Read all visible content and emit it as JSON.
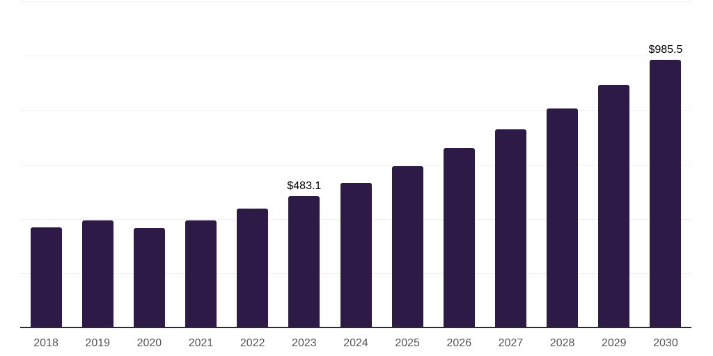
{
  "chart_data": {
    "type": "bar",
    "title": "",
    "xlabel": "",
    "ylabel": "",
    "categories": [
      "2018",
      "2019",
      "2020",
      "2021",
      "2022",
      "2023",
      "2024",
      "2025",
      "2026",
      "2027",
      "2028",
      "2029",
      "2030"
    ],
    "values": [
      368,
      395,
      365,
      395,
      438,
      483.1,
      533,
      593,
      659,
      729,
      806,
      893,
      985.5
    ],
    "point_labels": [
      "",
      "",
      "",
      "",
      "",
      "$483.1",
      "",
      "",
      "",
      "",
      "",
      "",
      "$985.5"
    ],
    "ylim": [
      0,
      1200
    ],
    "gridline_step": 200,
    "grid": "horizontal",
    "legend": "none",
    "colors": {
      "bar": "#2e1a47",
      "gridline": "#f0f0f0",
      "axis_line": "#2b2b2b",
      "tick_label": "#555555",
      "data_label": "#000000",
      "background": "#ffffff"
    }
  }
}
